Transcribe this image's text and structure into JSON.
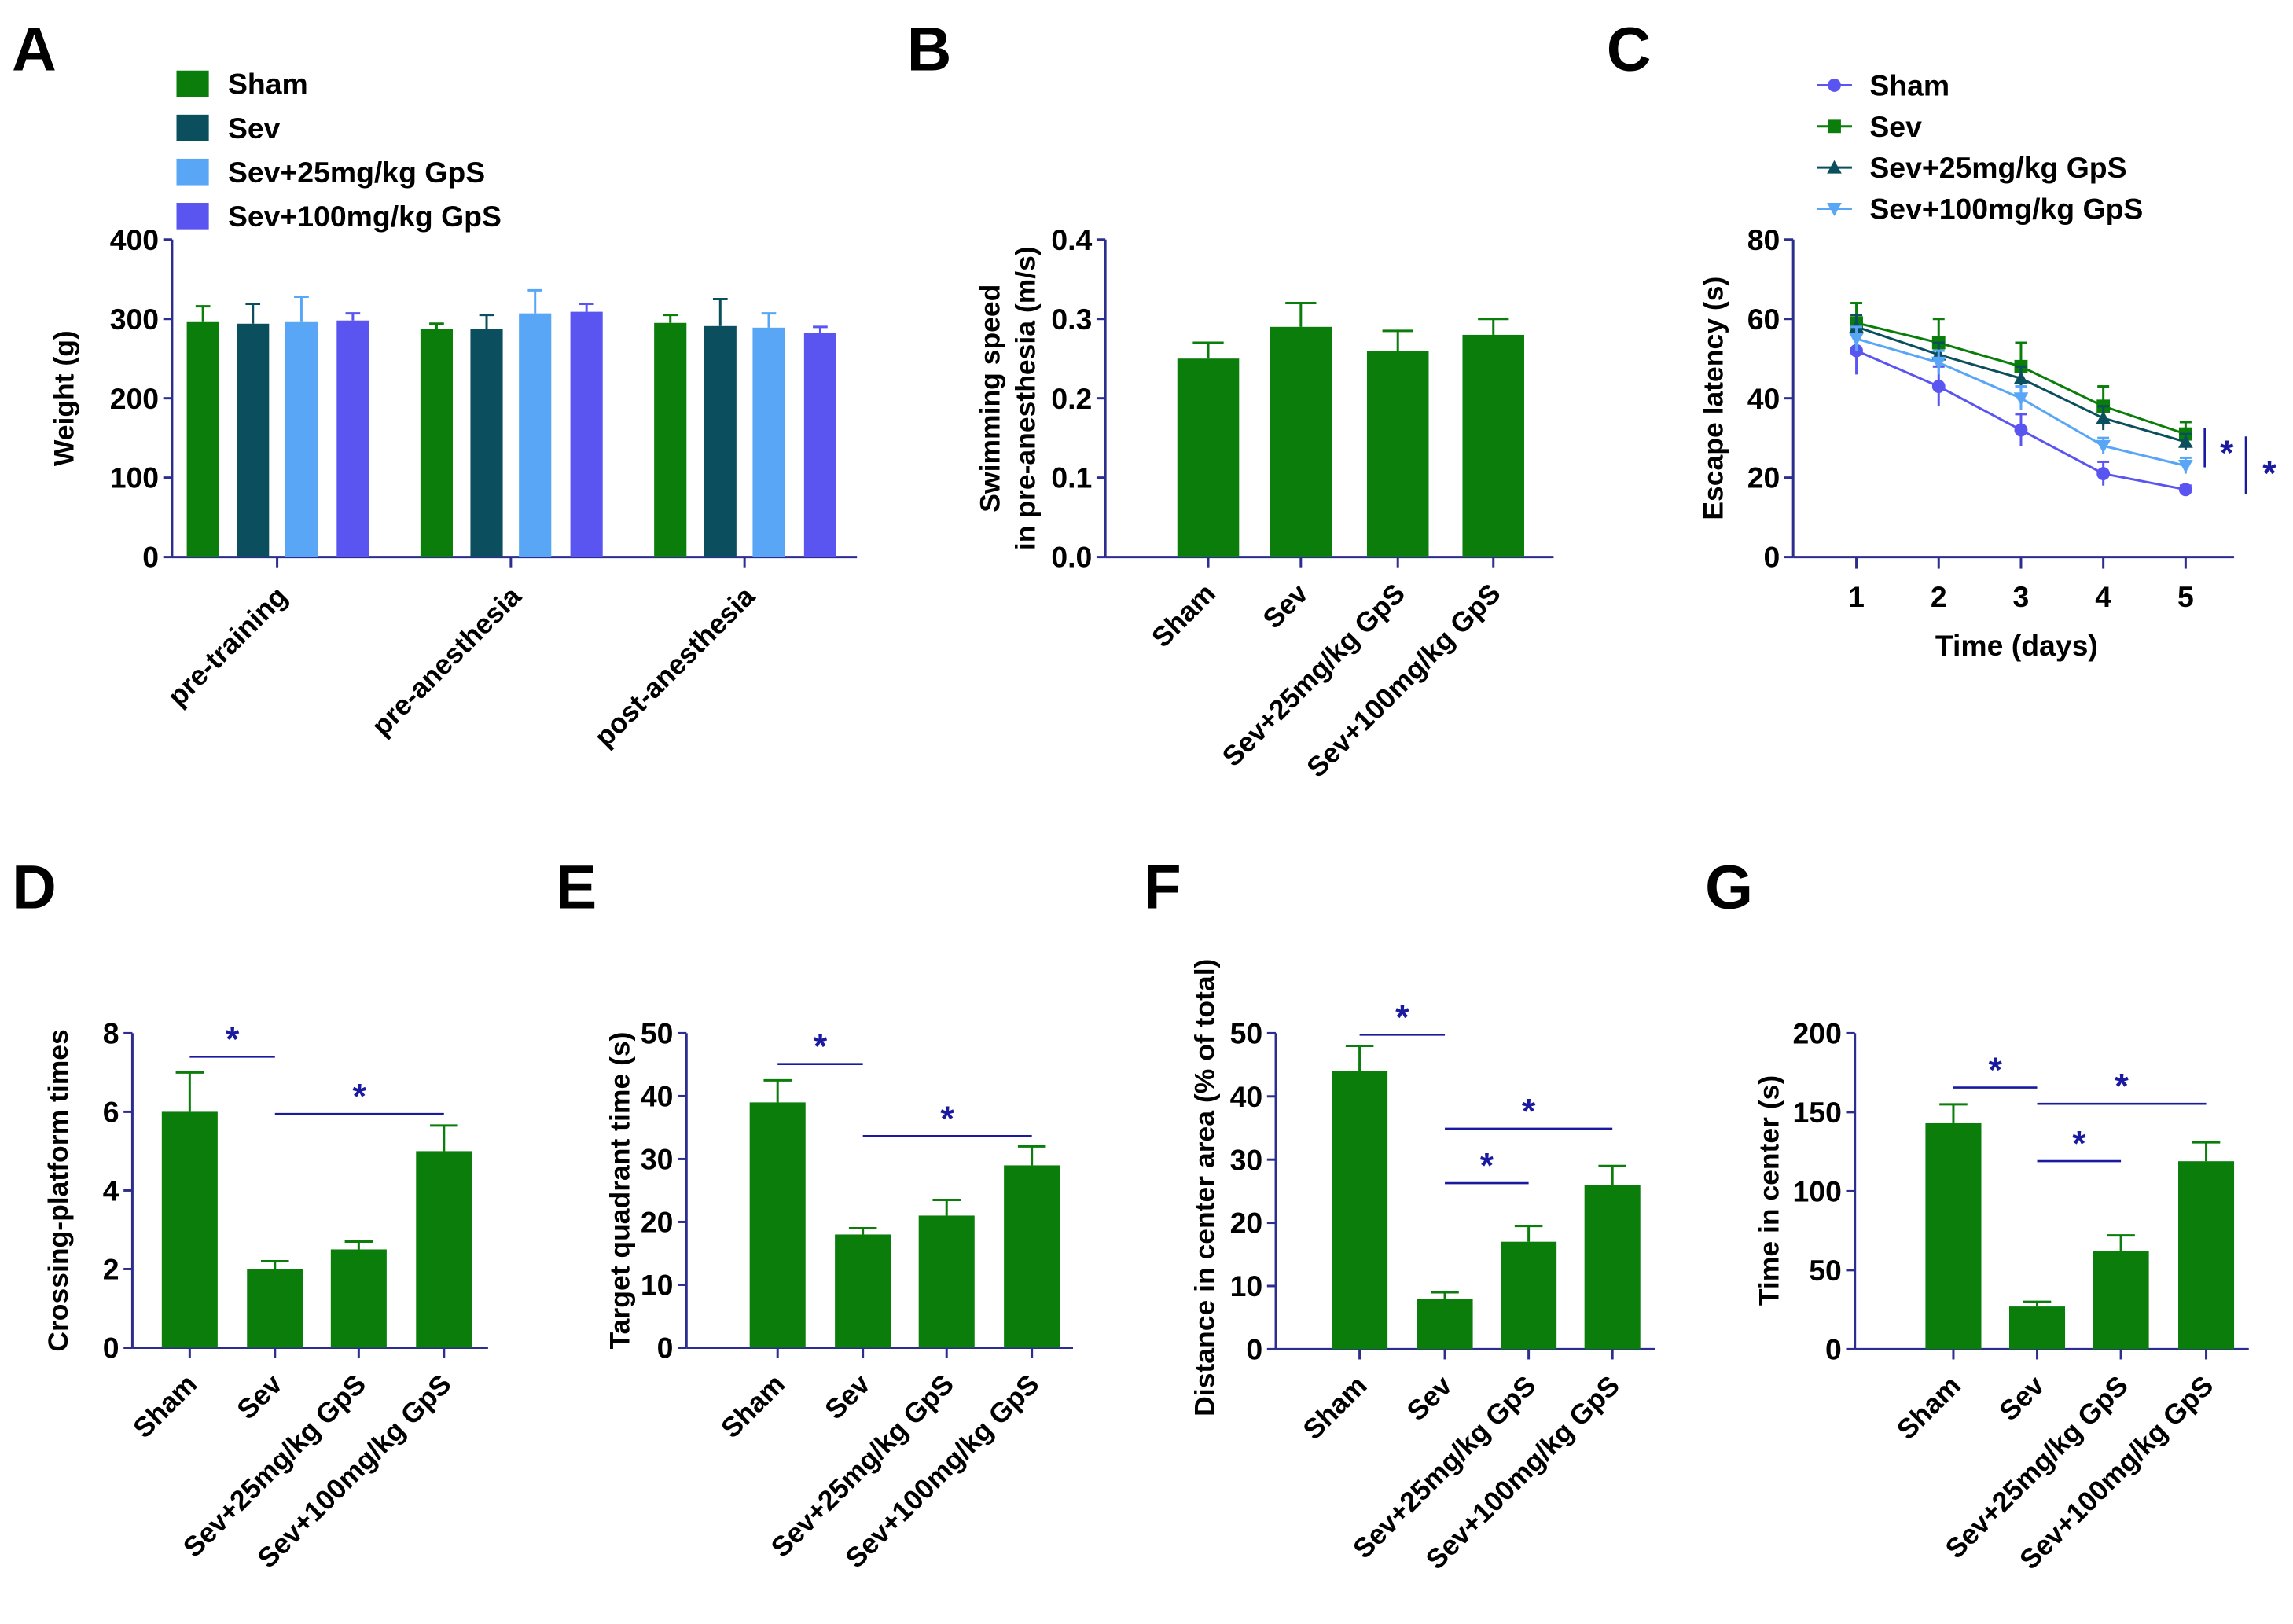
{
  "colors": {
    "sham": "#0a7d0a",
    "sev": "#0b4f5e",
    "sev25": "#58a6f5",
    "sev100": "#5a55f0",
    "axis": "#2d2d8f",
    "sig": "#1a1aa0"
  },
  "chart_data": [
    {
      "panel": "A",
      "type": "bar",
      "ylabel": "Weight (g)",
      "ylim": [
        0,
        400
      ],
      "yticks": [
        "0",
        "100",
        "200",
        "300",
        "400"
      ],
      "categories": [
        "pre-training",
        "pre-anesthesia",
        "post-anesthesia"
      ],
      "legend_placement": "top-left",
      "series": [
        {
          "name": "Sham",
          "color": "#0a7d0a",
          "values": [
            296,
            287,
            295
          ],
          "errors": [
            20,
            7,
            10
          ]
        },
        {
          "name": "Sev",
          "color": "#0b4f5e",
          "values": [
            294,
            287,
            291
          ],
          "errors": [
            25,
            18,
            34
          ]
        },
        {
          "name": "Sev+25mg/kg GpS",
          "color": "#58a6f5",
          "values": [
            296,
            307,
            289
          ],
          "errors": [
            32,
            29,
            18
          ]
        },
        {
          "name": "Sev+100mg/kg GpS",
          "color": "#5a55f0",
          "values": [
            298,
            309,
            282
          ],
          "errors": [
            9,
            10,
            8
          ]
        }
      ]
    },
    {
      "panel": "B",
      "type": "bar",
      "ylabel": [
        "Swimming speed",
        "in pre-anesthesia (m/s)"
      ],
      "ylim": [
        0,
        0.4
      ],
      "yticks": [
        "0.0",
        "0.1",
        "0.2",
        "0.3",
        "0.4"
      ],
      "categories": [
        "Sham",
        "Sev",
        "Sev+25mg/kg GpS",
        "Sev+100mg/kg GpS"
      ],
      "values": [
        0.25,
        0.29,
        0.26,
        0.28
      ],
      "errors": [
        0.02,
        0.03,
        0.025,
        0.02
      ],
      "significance": []
    },
    {
      "panel": "C",
      "type": "line",
      "xlabel": "Time (days)",
      "ylabel": "Escape latency (s)",
      "ylim": [
        0,
        80
      ],
      "yticks": [
        "0",
        "20",
        "40",
        "60",
        "80"
      ],
      "x": [
        1,
        2,
        3,
        4,
        5
      ],
      "legend_placement": "top-right",
      "series": [
        {
          "name": "Sham",
          "color": "#5a55f0",
          "marker": "circle",
          "values": [
            52,
            43,
            32,
            21,
            17
          ],
          "errors": [
            6,
            5,
            4,
            3,
            1
          ]
        },
        {
          "name": "Sev",
          "color": "#0a7d0a",
          "marker": "square",
          "values": [
            59,
            54,
            48,
            38,
            31
          ],
          "errors": [
            5,
            6,
            6,
            5,
            3
          ]
        },
        {
          "name": "Sev+25mg/kg GpS",
          "color": "#0b4f5e",
          "marker": "triangle-up",
          "values": [
            58,
            51,
            45,
            35,
            29
          ],
          "errors": [
            3,
            3,
            3,
            3,
            2
          ]
        },
        {
          "name": "Sev+100mg/kg GpS",
          "color": "#58a6f5",
          "marker": "triangle-down",
          "values": [
            55,
            49,
            40,
            28,
            23
          ],
          "errors": [
            3,
            3,
            3,
            2,
            2
          ]
        }
      ],
      "significance": [
        "*",
        "*"
      ]
    },
    {
      "panel": "D",
      "type": "bar",
      "ylabel": "Crossing-platform times",
      "ylim": [
        0,
        8
      ],
      "yticks": [
        "0",
        "2",
        "4",
        "6",
        "8"
      ],
      "categories": [
        "Sham",
        "Sev",
        "Sev+25mg/kg GpS",
        "Sev+100mg/kg GpS"
      ],
      "values": [
        6,
        2,
        2.5,
        5
      ],
      "errors": [
        1,
        0.2,
        0.2,
        0.65
      ],
      "significance": [
        {
          "from": "Sham",
          "to": "Sev",
          "label": "*"
        },
        {
          "from": "Sev",
          "to": "Sev+100mg/kg GpS",
          "label": "*"
        }
      ]
    },
    {
      "panel": "E",
      "type": "bar",
      "ylabel": "Target quadrant time (s)",
      "ylim": [
        0,
        50
      ],
      "yticks": [
        "0",
        "10",
        "20",
        "30",
        "40",
        "50"
      ],
      "categories": [
        "Sham",
        "Sev",
        "Sev+25mg/kg GpS",
        "Sev+100mg/kg GpS"
      ],
      "values": [
        39,
        18,
        21,
        29
      ],
      "errors": [
        3.5,
        1,
        2.5,
        3
      ],
      "significance": [
        {
          "from": "Sham",
          "to": "Sev",
          "label": "*"
        },
        {
          "from": "Sev",
          "to": "Sev+100mg/kg GpS",
          "label": "*"
        }
      ]
    },
    {
      "panel": "F",
      "type": "bar",
      "ylabel": "Distance in center area (% of total)",
      "ylim": [
        0,
        50
      ],
      "yticks": [
        "0",
        "10",
        "20",
        "30",
        "40",
        "50"
      ],
      "categories": [
        "Sham",
        "Sev",
        "Sev+25mg/kg GpS",
        "Sev+100mg/kg GpS"
      ],
      "values": [
        44,
        8,
        17,
        26
      ],
      "errors": [
        4,
        1,
        2.5,
        3
      ],
      "significance": [
        {
          "from": "Sham",
          "to": "Sev",
          "label": "*"
        },
        {
          "from": "Sev",
          "to": "Sev+25mg/kg GpS",
          "label": "*"
        },
        {
          "from": "Sev",
          "to": "Sev+100mg/kg GpS",
          "label": "*"
        }
      ]
    },
    {
      "panel": "G",
      "type": "bar",
      "ylabel": "Time in center (s)",
      "ylim": [
        0,
        200
      ],
      "yticks": [
        "0",
        "50",
        "100",
        "150",
        "200"
      ],
      "categories": [
        "Sham",
        "Sev",
        "Sev+25mg/kg GpS",
        "Sev+100mg/kg GpS"
      ],
      "values": [
        143,
        27,
        62,
        119
      ],
      "errors": [
        12,
        3,
        10,
        12
      ],
      "significance": [
        {
          "from": "Sham",
          "to": "Sev",
          "label": "*"
        },
        {
          "from": "Sev",
          "to": "Sev+25mg/kg GpS",
          "label": "*"
        },
        {
          "from": "Sev",
          "to": "Sev+100mg/kg GpS",
          "label": "*"
        }
      ]
    }
  ]
}
